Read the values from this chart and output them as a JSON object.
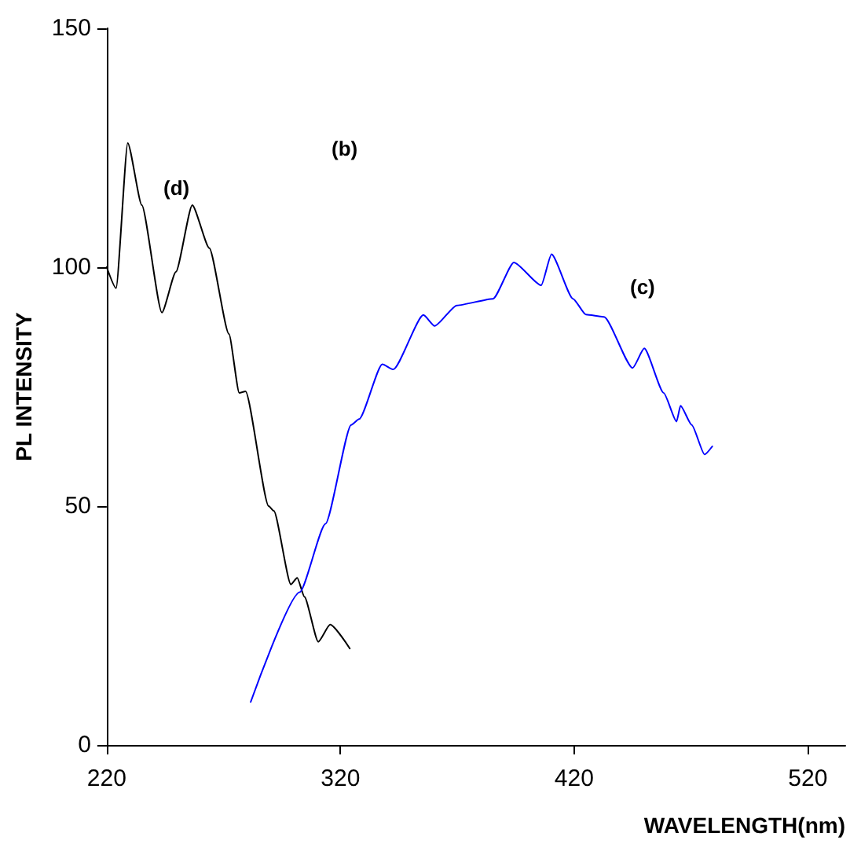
{
  "chart_data": {
    "type": "line",
    "xlabel": "WAVELENGTH(nm)",
    "ylabel": "PL INTENSITY",
    "xlim": [
      220,
      536
    ],
    "ylim": [
      0,
      150
    ],
    "xticks": [
      220,
      320,
      420,
      520
    ],
    "yticks": [
      0,
      50,
      100,
      150
    ],
    "grid": false,
    "marker": "none",
    "line_style": "solid",
    "annotations": [
      "(b)",
      "(d)",
      "(c)"
    ],
    "series": [
      {
        "color": "#000000",
        "x": [
          220,
          224,
          229,
          235,
          243.6,
          249.6,
          256.6,
          263.9,
          272.3,
          276.7,
          279.4,
          289.3,
          291.5,
          298.8,
          301.5,
          304.6,
          310.5,
          315.6,
          324
        ],
        "values": [
          100,
          95.6,
          126,
          113,
          90.5,
          99,
          113,
          104,
          86,
          73.7,
          74,
          50,
          49,
          33.6,
          35,
          31,
          21.6,
          25.2,
          20.2
        ]
      },
      {
        "color": "#0000ff",
        "x": [
          281.6,
          302.6,
          313.6,
          324.6,
          328,
          337.9,
          342.6,
          355.5,
          360.3,
          369.8,
          385.3,
          394.2,
          405.9,
          410.3,
          419.5,
          425,
          432.8,
          445,
          450,
          458.3,
          463.8,
          465.5,
          470.3,
          475.8,
          479.1
        ],
        "values": [
          9,
          32,
          46.3,
          67,
          68.2,
          79.7,
          78.6,
          90,
          87.7,
          92,
          93.4,
          101,
          96.2,
          102.7,
          93.4,
          90.1,
          89.6,
          78.9,
          83,
          73.7,
          67.7,
          71,
          67,
          60.8,
          62.5
        ]
      }
    ]
  }
}
